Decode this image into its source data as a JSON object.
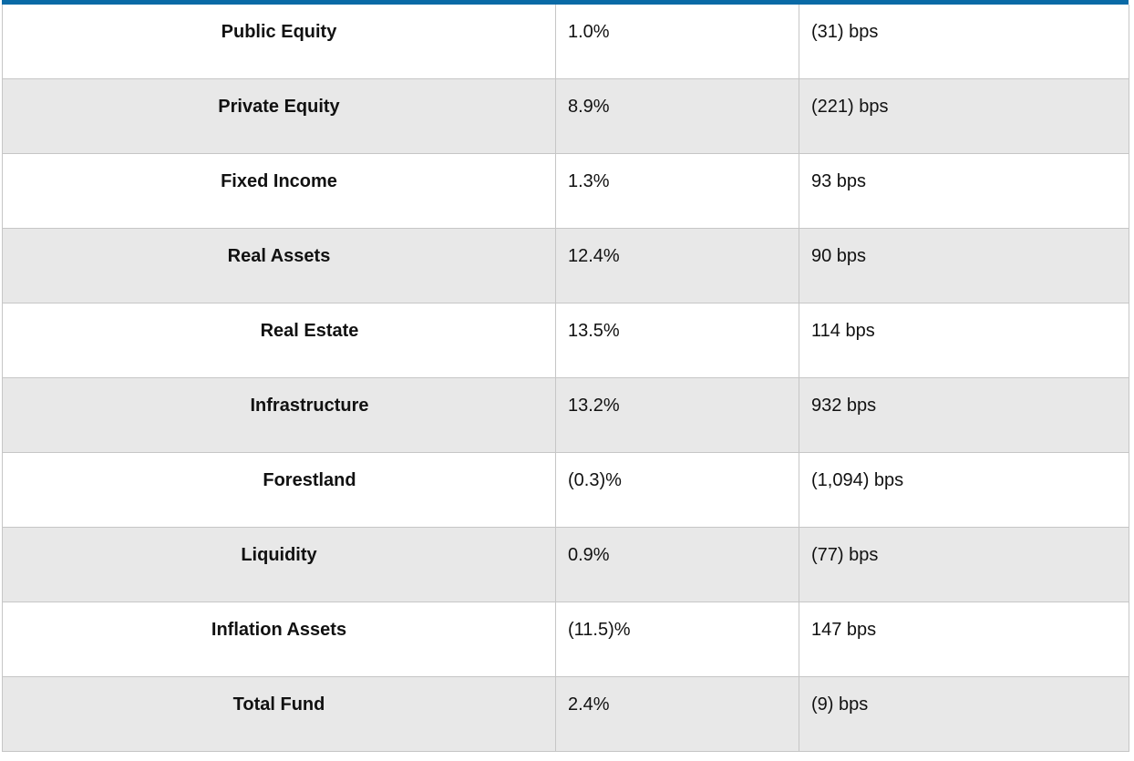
{
  "accent_color": "#0a6aa6",
  "rows": [
    {
      "label": "Public Equity",
      "return": "1.0%",
      "relative": "(31) bps"
    },
    {
      "label": "Private Equity",
      "return": "8.9%",
      "relative": "(221) bps"
    },
    {
      "label": "Fixed Income",
      "return": "1.3%",
      "relative": "93 bps"
    },
    {
      "label": "Real Assets",
      "return": "12.4%",
      "relative": "90 bps"
    },
    {
      "label": "Real Estate",
      "return": "13.5%",
      "relative": "114 bps"
    },
    {
      "label": "Infrastructure",
      "return": "13.2%",
      "relative": "932 bps"
    },
    {
      "label": "Forestland",
      "return": "(0.3)%",
      "relative": "(1,094) bps"
    },
    {
      "label": "Liquidity",
      "return": "0.9%",
      "relative": "(77) bps"
    },
    {
      "label": "Inflation Assets",
      "return": "(11.5)%",
      "relative": "147 bps"
    },
    {
      "label": "Total Fund",
      "return": "2.4%",
      "relative": "(9) bps"
    }
  ]
}
